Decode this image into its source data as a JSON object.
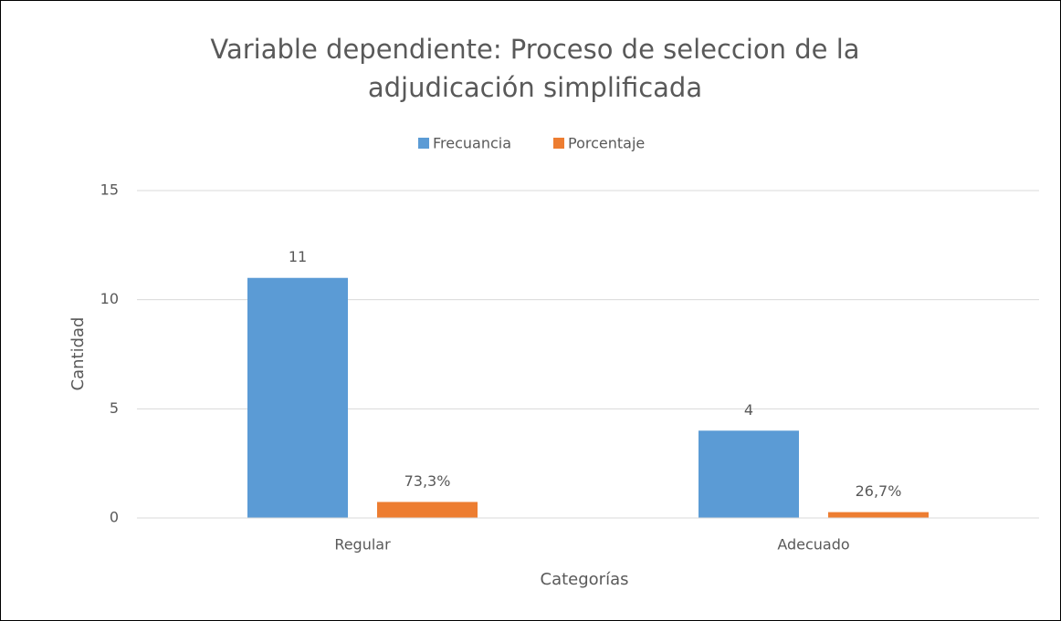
{
  "chart_data": {
    "type": "bar",
    "title": [
      "Variable dependiente: Proceso de seleccion de la",
      "adjudicación simplificada"
    ],
    "x_label": "Categorías",
    "y_label": "Cantidad",
    "categories": [
      "Regular",
      "Adecuado"
    ],
    "series": [
      {
        "name": "Frecuancia",
        "color": "#5b9bd5",
        "values": [
          11,
          4
        ]
      },
      {
        "name": "Porcentaje",
        "color": "#ed7d31",
        "values": [
          0.733,
          0.267
        ],
        "value_labels": [
          "73,3%",
          "26,7%"
        ]
      }
    ],
    "ylim": [
      0,
      15
    ],
    "yticks": [
      0,
      5,
      10,
      15
    ],
    "grid": true,
    "legend": "top"
  }
}
